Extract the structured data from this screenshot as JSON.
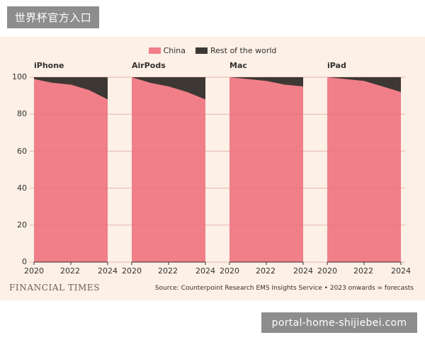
{
  "watermarks": {
    "top_label": "世界杯官方入口",
    "bottom_label": "portal-home-shijiebei.com"
  },
  "colors": {
    "china": "#f07f89",
    "rest": "#3d3834",
    "grid": "#e7b4ac",
    "background": "#fdf0e6"
  },
  "footer": {
    "brand": "FINANCIAL TIMES",
    "source": "Source: Counterpoint Research EMS Insights Service • 2023 onwards = forecasts"
  },
  "chart_data": {
    "type": "area",
    "stacked": true,
    "legend": {
      "placement": "top-center",
      "items": [
        {
          "label": "China",
          "color": "#f07f89"
        },
        {
          "label": "Rest of the world",
          "color": "#3d3834"
        }
      ]
    },
    "x": [
      2020,
      2021,
      2022,
      2023,
      2024
    ],
    "x_ticks": [
      "2020",
      "2022",
      "2024"
    ],
    "y_ticks": [
      "0",
      "20",
      "40",
      "60",
      "80",
      "100"
    ],
    "ylim": [
      0,
      100
    ],
    "grid": true,
    "panels": [
      {
        "title": "iPhone",
        "series": [
          {
            "name": "China",
            "values": [
              99,
              97,
              96,
              93,
              88
            ]
          },
          {
            "name": "Rest of the world",
            "values": [
              1,
              3,
              4,
              7,
              12
            ]
          }
        ]
      },
      {
        "title": "AirPods",
        "series": [
          {
            "name": "China",
            "values": [
              100,
              97,
              95,
              92,
              88
            ]
          },
          {
            "name": "Rest of the world",
            "values": [
              0,
              3,
              5,
              8,
              12
            ]
          }
        ]
      },
      {
        "title": "Mac",
        "series": [
          {
            "name": "China",
            "values": [
              100,
              99,
              98,
              96,
              95
            ]
          },
          {
            "name": "Rest of the world",
            "values": [
              0,
              1,
              2,
              4,
              5
            ]
          }
        ]
      },
      {
        "title": "iPad",
        "series": [
          {
            "name": "China",
            "values": [
              100,
              99,
              98,
              95,
              92
            ]
          },
          {
            "name": "Rest of the world",
            "values": [
              0,
              1,
              2,
              5,
              8
            ]
          }
        ]
      }
    ]
  }
}
